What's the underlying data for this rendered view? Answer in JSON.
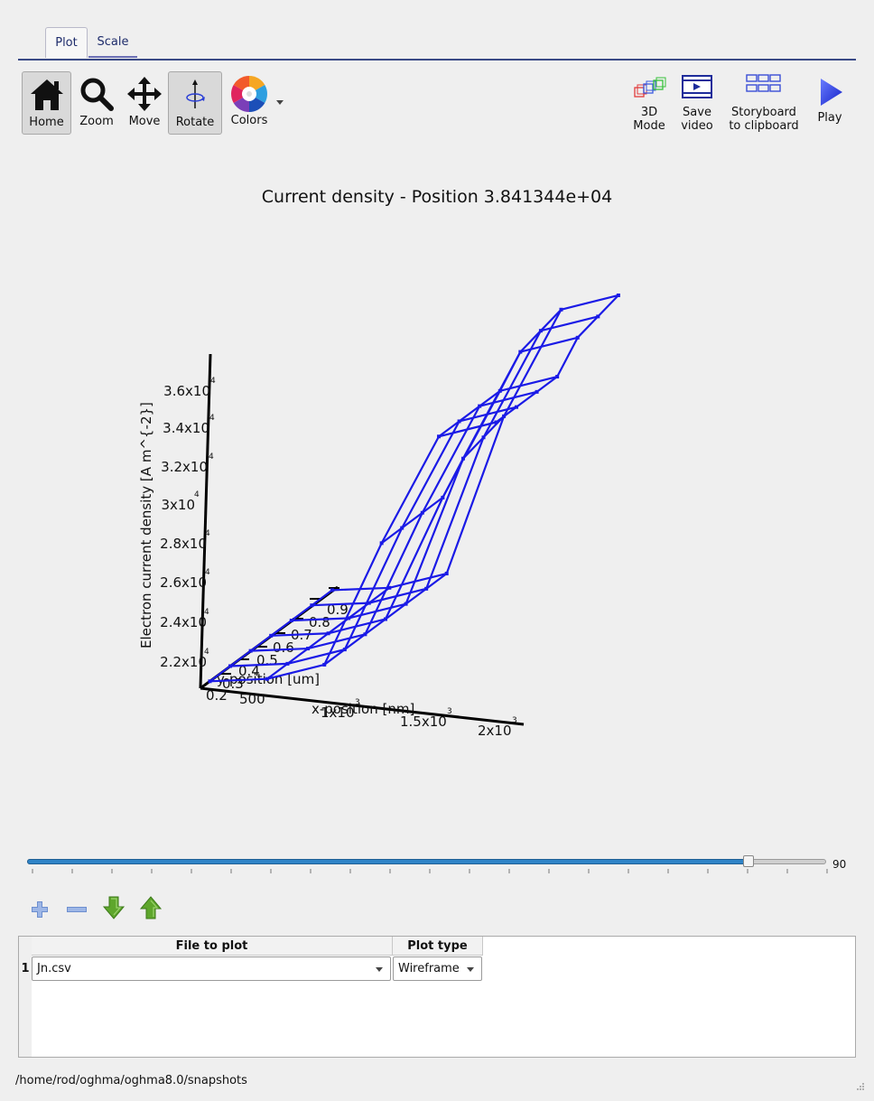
{
  "tabs": [
    {
      "label": "Plot",
      "active": true
    },
    {
      "label": "Scale",
      "active": false
    }
  ],
  "toolbar": {
    "home": "Home",
    "zoom": "Zoom",
    "move": "Move",
    "rotate": "Rotate",
    "colors": "Colors",
    "mode3d_line1": "3D",
    "mode3d_line2": "Mode",
    "save_video_line1": "Save",
    "save_video_line2": "video",
    "storyboard_line1": "Storyboard",
    "storyboard_line2": "to clipboard",
    "play": "Play",
    "pressed": [
      "Home",
      "Rotate"
    ]
  },
  "plot": {
    "title": "Current density - Position 3.841344e+04",
    "line_color": "#1a1ae6",
    "z_axis": {
      "label": "Electron current density [A m^{-2}]",
      "ticks": [
        "2.2x10",
        "2.4x10",
        "2.6x10",
        "2.8x10",
        "3x10",
        "3.2x10",
        "3.4x10",
        "3.6x10"
      ],
      "exponent": "4"
    },
    "x_axis": {
      "label": "x-position [nm]",
      "ticks": [
        "500",
        "1x10",
        "1.5x10",
        "2x10"
      ],
      "exponents": [
        "",
        "3",
        "3",
        "3"
      ]
    },
    "y_axis": {
      "label": "y-position [um]",
      "ticks": [
        "0.2",
        "0.3",
        "0.4",
        "0.5",
        "0.6",
        "0.7",
        "0.8",
        "0.9"
      ]
    }
  },
  "slider": {
    "value": "90",
    "fraction": 0.903
  },
  "list_icons": [
    "plus-icon",
    "minus-icon",
    "arrow-down-icon",
    "arrow-up-icon"
  ],
  "table": {
    "headers": [
      "File to plot",
      "Plot type"
    ],
    "rows": [
      {
        "num": "1",
        "file": "Jn.csv",
        "type": "Wireframe"
      }
    ]
  },
  "status_path": "/home/rod/oghma/oghma8.0/snapshots"
}
